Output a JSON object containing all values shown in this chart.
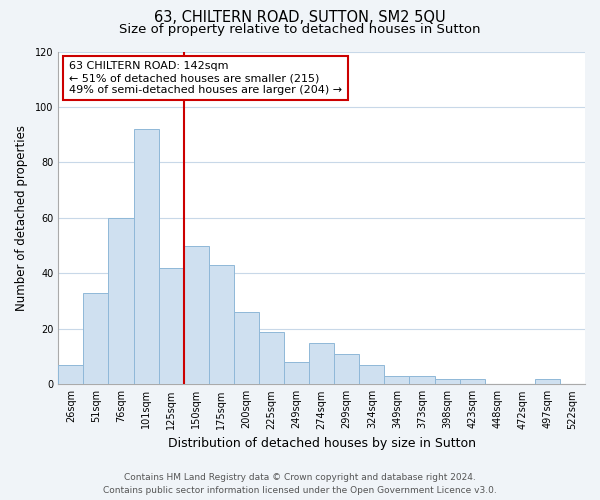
{
  "title": "63, CHILTERN ROAD, SUTTON, SM2 5QU",
  "subtitle": "Size of property relative to detached houses in Sutton",
  "xlabel": "Distribution of detached houses by size in Sutton",
  "ylabel": "Number of detached properties",
  "categories": [
    "26sqm",
    "51sqm",
    "76sqm",
    "101sqm",
    "125sqm",
    "150sqm",
    "175sqm",
    "200sqm",
    "225sqm",
    "249sqm",
    "274sqm",
    "299sqm",
    "324sqm",
    "349sqm",
    "373sqm",
    "398sqm",
    "423sqm",
    "448sqm",
    "472sqm",
    "497sqm",
    "522sqm"
  ],
  "values": [
    7,
    33,
    60,
    92,
    42,
    50,
    43,
    26,
    19,
    8,
    15,
    11,
    7,
    3,
    3,
    2,
    2,
    0,
    0,
    2,
    0
  ],
  "bar_color": "#cfe0f0",
  "bar_edge_color": "#8fb8d8",
  "vline_x_index": 4,
  "vline_color": "#cc0000",
  "annotation_box_color": "#ffffff",
  "annotation_box_edge_color": "#cc0000",
  "annotation_line1": "63 CHILTERN ROAD: 142sqm",
  "annotation_line2": "← 51% of detached houses are smaller (215)",
  "annotation_line3": "49% of semi-detached houses are larger (204) →",
  "ylim": [
    0,
    120
  ],
  "yticks": [
    0,
    20,
    40,
    60,
    80,
    100,
    120
  ],
  "footer1": "Contains HM Land Registry data © Crown copyright and database right 2024.",
  "footer2": "Contains public sector information licensed under the Open Government Licence v3.0.",
  "bg_color": "#f0f4f8",
  "plot_bg_color": "#ffffff",
  "grid_color": "#c8d8e8",
  "title_fontsize": 10.5,
  "subtitle_fontsize": 9.5,
  "xlabel_fontsize": 9,
  "ylabel_fontsize": 8.5,
  "tick_fontsize": 7,
  "footer_fontsize": 6.5,
  "annotation_fontsize": 8
}
